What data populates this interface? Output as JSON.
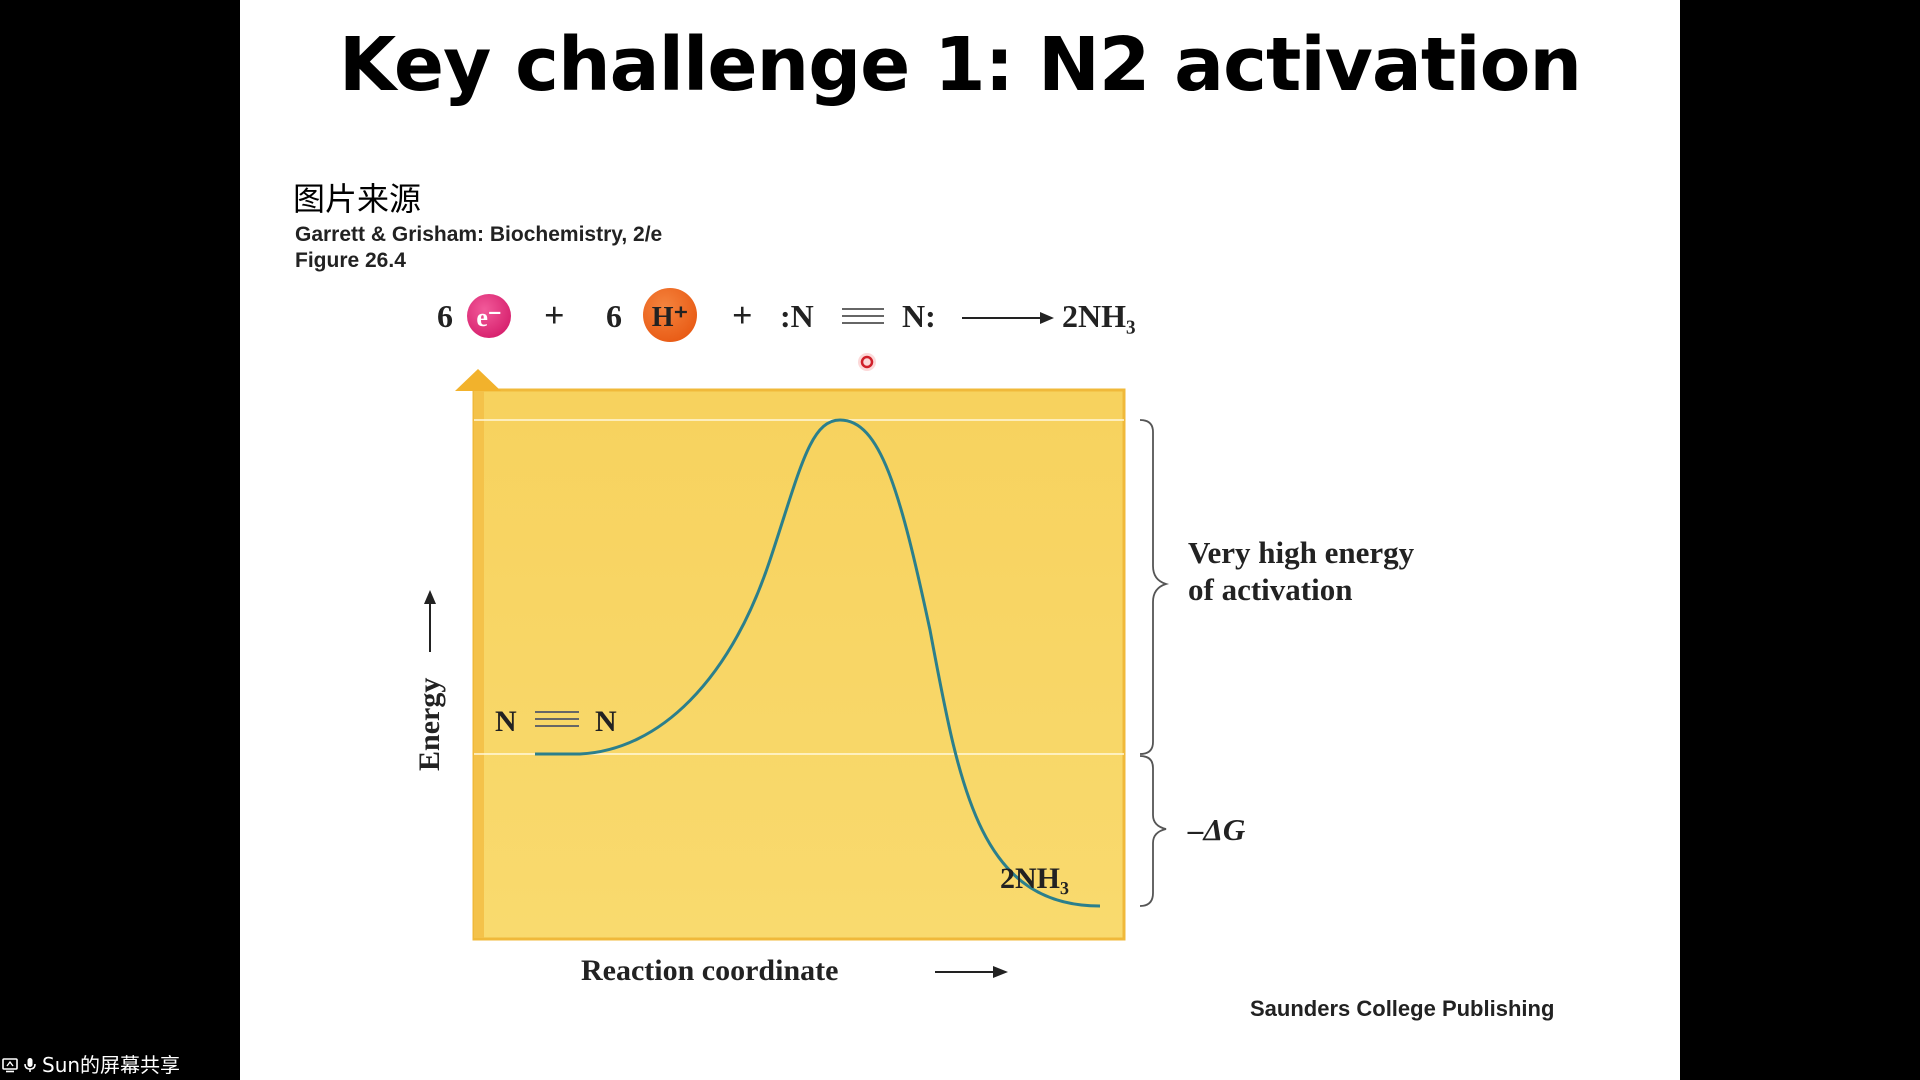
{
  "slide": {
    "title": "Key challenge 1: N2 activation",
    "source_label": "图片来源",
    "citation_line1": "Garrett & Grisham: Biochemistry, 2/e",
    "citation_line2": "Figure 26.4",
    "publisher": "Saunders College Publishing"
  },
  "equation": {
    "coef_electrons": "6",
    "electron_symbol": "e⁻",
    "plus1": "+",
    "coef_protons": "6",
    "proton_symbol": "H⁺",
    "plus2": "+",
    "n_left": ":N",
    "n_right": "N:",
    "product": "2NH₃"
  },
  "diagram": {
    "y_axis_label": "Energy",
    "x_axis_label": "Reaction coordinate",
    "reactant_left": "N",
    "reactant_right": "N",
    "product_label": "2NH₃",
    "activation_label_line1": "Very high energy",
    "activation_label_line2": "of activation",
    "delta_g_label": "–ΔG",
    "colors": {
      "panel": "#f8d665",
      "panel_edge": "#f2b22c",
      "curve": "#2b7f8c",
      "electron": "#e0307a",
      "proton": "#ef6a22"
    }
  },
  "taskbar": {
    "share_label": "Sun的屏幕共享",
    "icons": [
      "screen-share-icon",
      "microphone-icon"
    ]
  }
}
